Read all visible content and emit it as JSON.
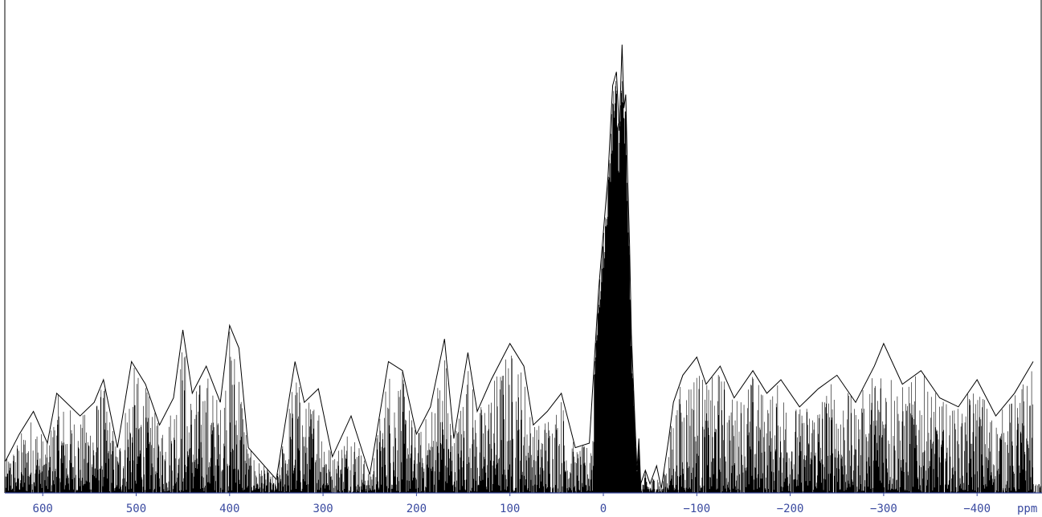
{
  "chart_data": {
    "type": "line",
    "title": "",
    "xlabel": "ppm",
    "ylabel": "",
    "x_reversed": true,
    "xlim": [
      645,
      -465
    ],
    "ylim": [
      0,
      1.0
    ],
    "grid": false,
    "legend": "none",
    "x_ticks": [
      600,
      500,
      400,
      300,
      200,
      100,
      0,
      -100,
      -200,
      -300,
      -400
    ],
    "x_tick_labels": [
      "600",
      "500",
      "400",
      "300",
      "200",
      "100",
      "0",
      "−100",
      "−200",
      "−300",
      "−400"
    ],
    "series": [
      {
        "line_color": "#000000",
        "x": [
          640,
          625,
          610,
          595,
          585,
          560,
          545,
          535,
          520,
          505,
          490,
          475,
          460,
          450,
          440,
          425,
          410,
          400,
          390,
          380,
          350,
          330,
          320,
          305,
          290,
          270,
          250,
          230,
          215,
          200,
          185,
          170,
          160,
          145,
          135,
          120,
          100,
          85,
          75,
          60,
          45,
          30,
          15,
          5,
          -5,
          -10,
          -14,
          -17,
          -20,
          -22,
          -24,
          -26,
          -28,
          -30,
          -32,
          -34,
          -36,
          -38,
          -40,
          -45,
          -50,
          -57,
          -62,
          -70,
          -75,
          -85,
          -100,
          -110,
          -125,
          -140,
          -160,
          -175,
          -190,
          -210,
          -230,
          -250,
          -270,
          -290,
          -300,
          -320,
          -340,
          -360,
          -380,
          -400,
          -420,
          -440,
          -460
        ],
        "y": [
          0.07,
          0.13,
          0.18,
          0.11,
          0.22,
          0.17,
          0.2,
          0.25,
          0.1,
          0.29,
          0.24,
          0.15,
          0.21,
          0.36,
          0.22,
          0.28,
          0.2,
          0.37,
          0.32,
          0.1,
          0.03,
          0.29,
          0.2,
          0.23,
          0.08,
          0.17,
          0.04,
          0.29,
          0.27,
          0.13,
          0.19,
          0.34,
          0.12,
          0.31,
          0.18,
          0.25,
          0.33,
          0.28,
          0.15,
          0.18,
          0.22,
          0.1,
          0.11,
          0.45,
          0.7,
          0.9,
          0.93,
          0.8,
          0.99,
          0.85,
          0.88,
          0.7,
          0.55,
          0.35,
          0.25,
          0.15,
          0.05,
          0.12,
          0.02,
          0.05,
          0.02,
          0.06,
          0.01,
          0.12,
          0.2,
          0.26,
          0.3,
          0.24,
          0.28,
          0.21,
          0.27,
          0.22,
          0.25,
          0.19,
          0.23,
          0.26,
          0.2,
          0.28,
          0.33,
          0.24,
          0.27,
          0.21,
          0.19,
          0.25,
          0.17,
          0.22,
          0.29
        ]
      }
    ]
  }
}
